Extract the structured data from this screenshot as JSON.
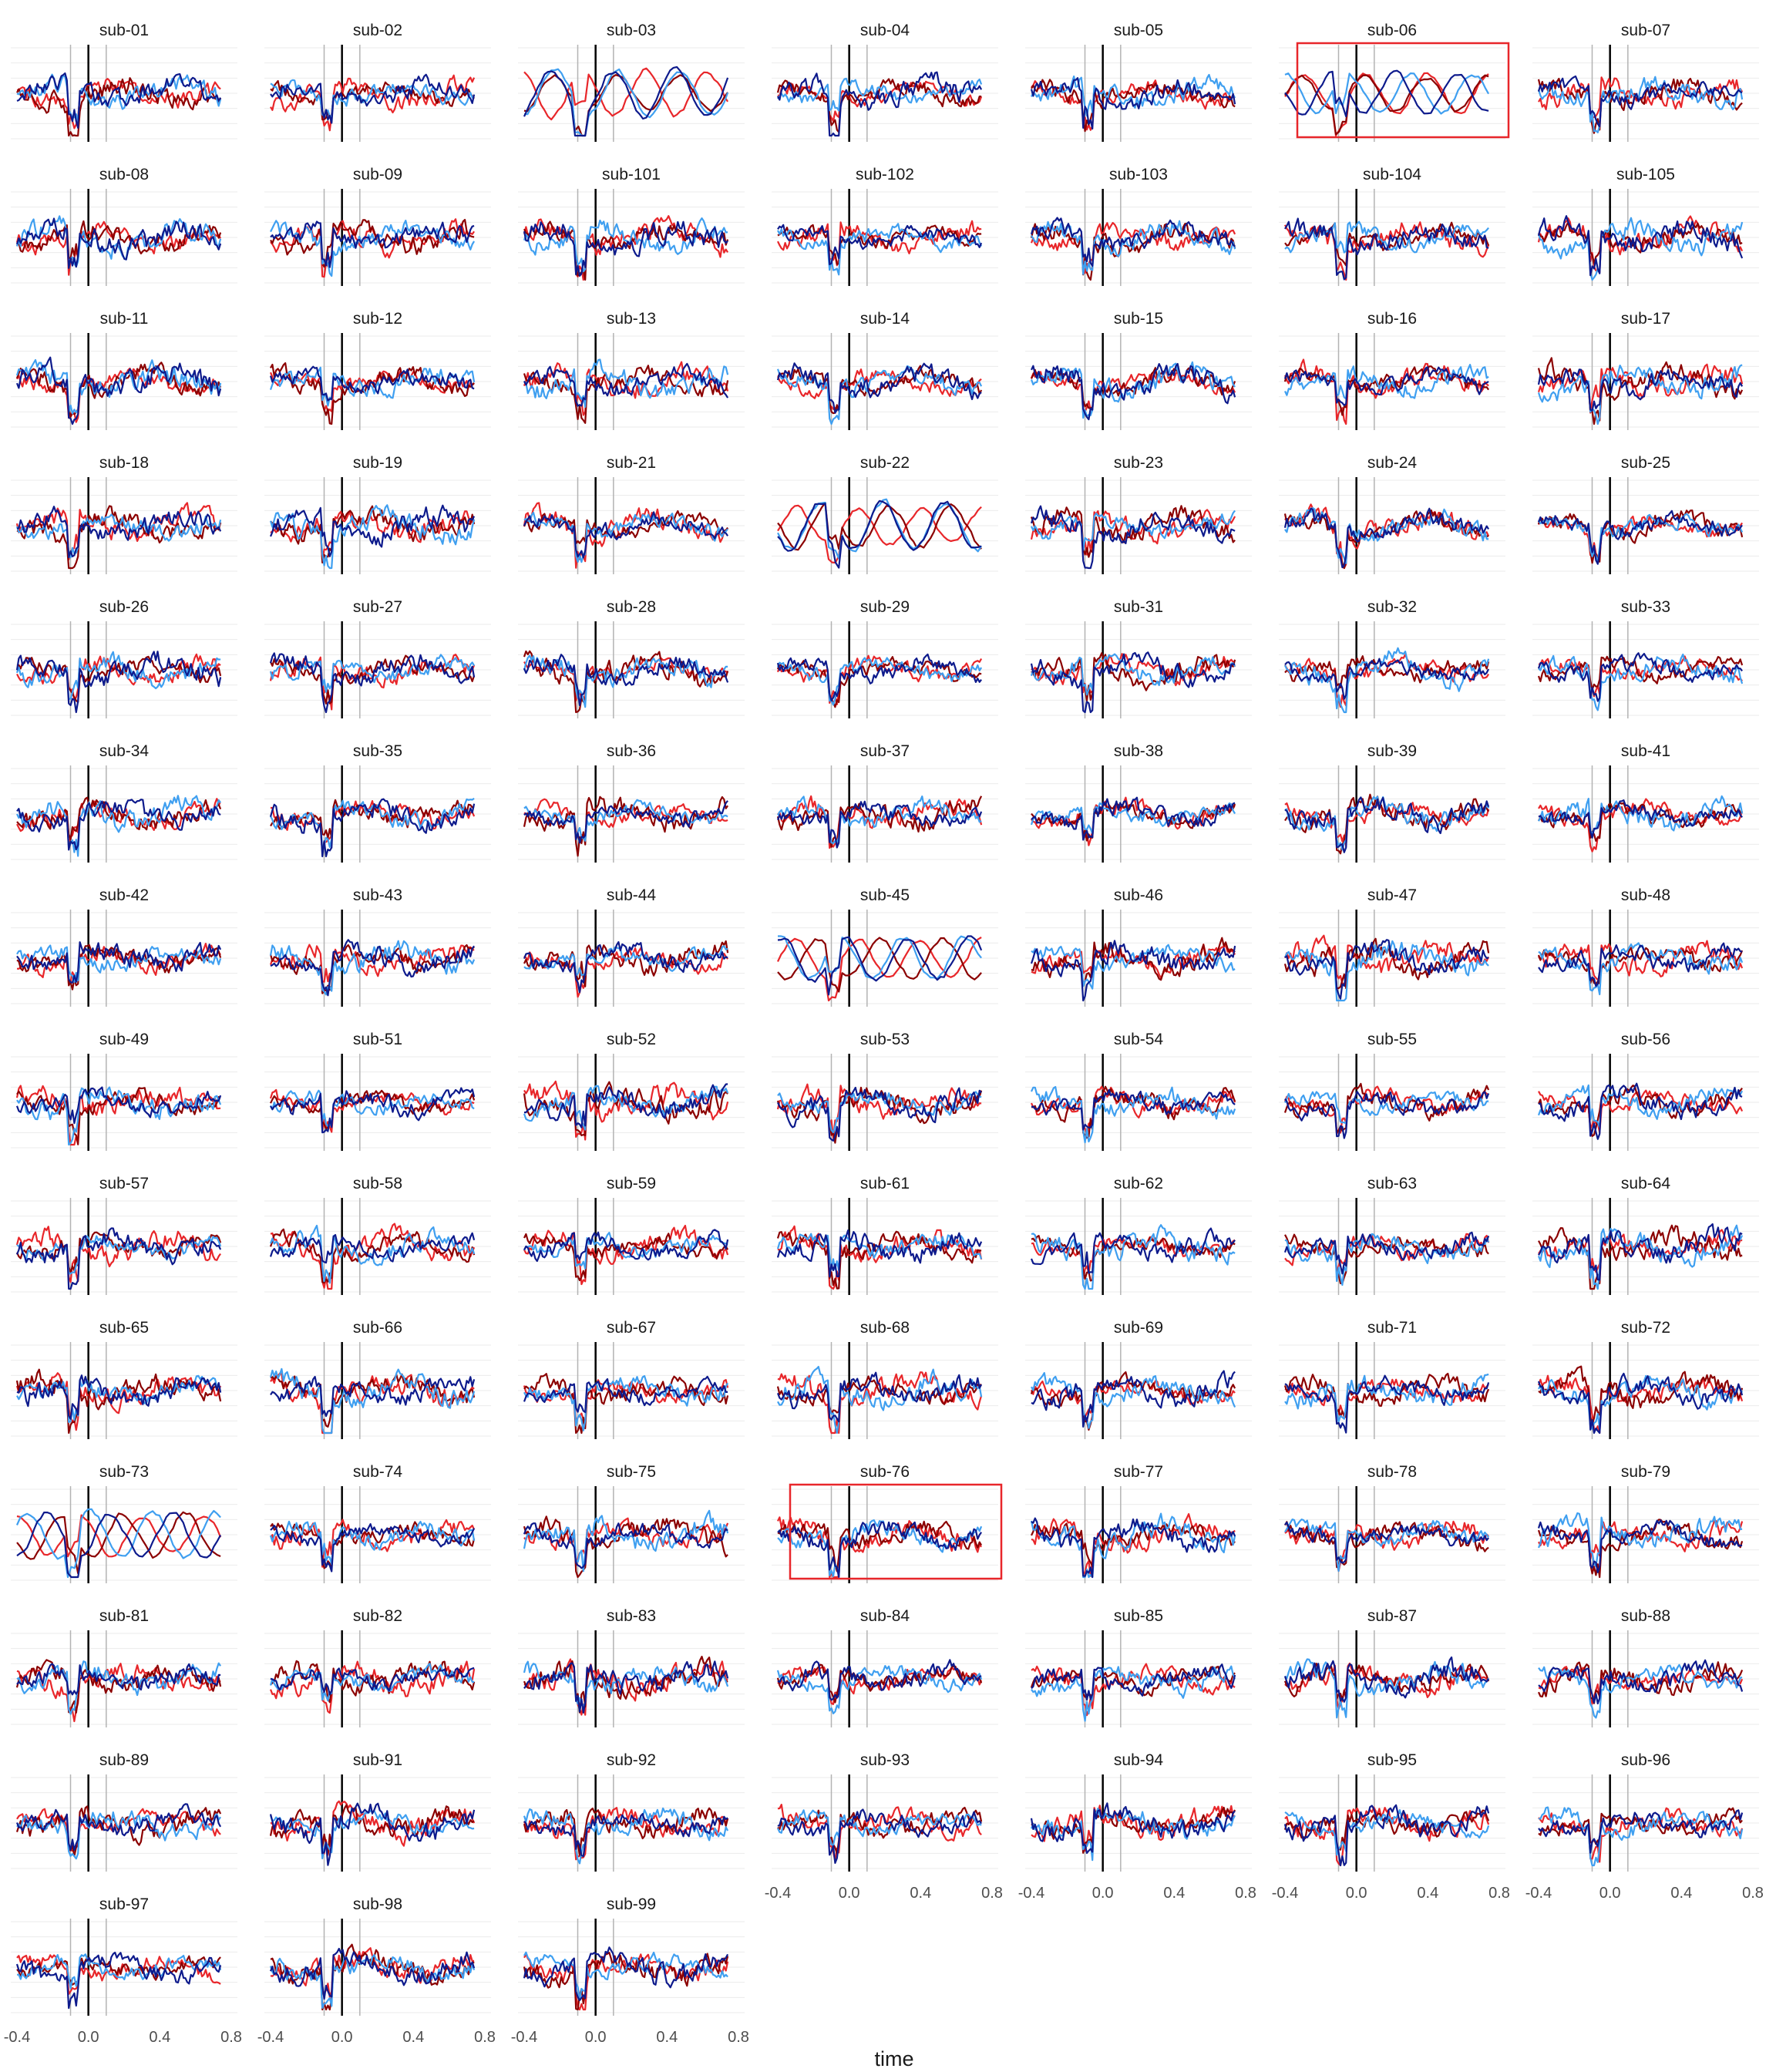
{
  "chart_data": {
    "type": "line",
    "facet_layout": {
      "columns": 7,
      "rows": 14
    },
    "x_axis": {
      "title": "time",
      "range": [
        -0.4,
        0.8
      ],
      "ticks": [
        -0.4,
        0.0,
        0.4,
        0.8
      ],
      "tick_labels": [
        "-0.4",
        "0.0",
        "0.4",
        "0.8"
      ]
    },
    "reference_lines_x": [
      -0.1,
      0.0,
      0.1
    ],
    "series_colors": [
      "#e8262a",
      "#8b0000",
      "#3f9ff0",
      "#0d1a8c"
    ],
    "highlighted_subjects": [
      "sub-06",
      "sub-76"
    ],
    "subjects": [
      "sub-01",
      "sub-02",
      "sub-03",
      "sub-04",
      "sub-05",
      "sub-06",
      "sub-07",
      "sub-08",
      "sub-09",
      "sub-101",
      "sub-102",
      "sub-103",
      "sub-104",
      "sub-105",
      "sub-11",
      "sub-12",
      "sub-13",
      "sub-14",
      "sub-15",
      "sub-16",
      "sub-17",
      "sub-18",
      "sub-19",
      "sub-21",
      "sub-22",
      "sub-23",
      "sub-24",
      "sub-25",
      "sub-26",
      "sub-27",
      "sub-28",
      "sub-29",
      "sub-31",
      "sub-32",
      "sub-33",
      "sub-34",
      "sub-35",
      "sub-36",
      "sub-37",
      "sub-38",
      "sub-39",
      "sub-41",
      "sub-42",
      "sub-43",
      "sub-44",
      "sub-45",
      "sub-46",
      "sub-47",
      "sub-48",
      "sub-49",
      "sub-51",
      "sub-52",
      "sub-53",
      "sub-54",
      "sub-55",
      "sub-56",
      "sub-57",
      "sub-58",
      "sub-59",
      "sub-61",
      "sub-62",
      "sub-63",
      "sub-64",
      "sub-65",
      "sub-66",
      "sub-67",
      "sub-68",
      "sub-69",
      "sub-71",
      "sub-72",
      "sub-73",
      "sub-74",
      "sub-75",
      "sub-76",
      "sub-77",
      "sub-78",
      "sub-79",
      "sub-81",
      "sub-82",
      "sub-83",
      "sub-84",
      "sub-85",
      "sub-87",
      "sub-88",
      "sub-89",
      "sub-91",
      "sub-92",
      "sub-93",
      "sub-94",
      "sub-95",
      "sub-96",
      "sub-97",
      "sub-98",
      "sub-99"
    ]
  }
}
